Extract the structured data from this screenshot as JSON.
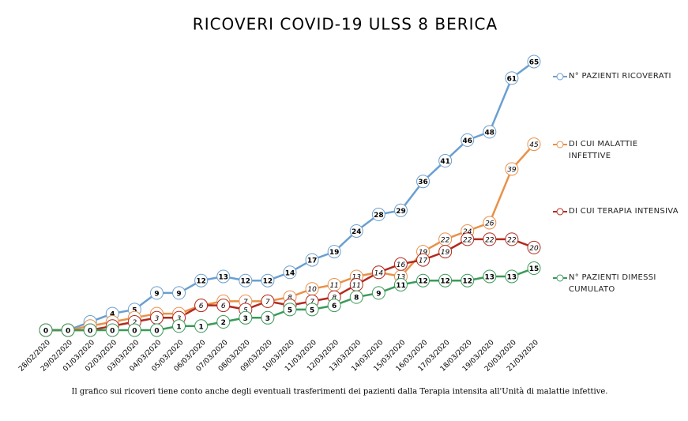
{
  "chart_data": {
    "type": "line",
    "title": "RICOVERI COVID-19 ULSS 8 BERICA",
    "footnote": "Il grafico sui ricoveri tiene conto anche degli eventuali trasferimenti dei pazienti dalla Terapia intensita all'Unità di malattie infettive.",
    "x": [
      "28/02/2020",
      "29/02/2020",
      "01/03/2020",
      "02/03/2020",
      "03/03/2020",
      "04/03/2020",
      "05/03/2020",
      "06/03/2020",
      "07/03/2020",
      "08/03/2020",
      "09/03/2020",
      "10/03/2020",
      "11/03/2020",
      "12/03/2020",
      "13/03/2020",
      "14/03/2020",
      "15/03/2020",
      "16/03/2020",
      "17/03/2020",
      "18/03/2020",
      "19/03/2020",
      "20/03/2020",
      "21/03/2020"
    ],
    "ylim": [
      0,
      65
    ],
    "series": [
      {
        "name": "N° PAZIENTI RICOVERATI",
        "color": "#6a9fd0",
        "values": [
          0,
          0,
          2,
          4,
          5,
          9,
          9,
          12,
          13,
          12,
          12,
          14,
          17,
          19,
          24,
          28,
          29,
          36,
          41,
          46,
          48,
          61,
          65
        ]
      },
      {
        "name": "DI CUI MALATTIE INFETTIVE",
        "color": "#e8914a",
        "values": [
          0,
          0,
          1,
          2,
          3,
          4,
          4,
          6,
          7,
          7,
          7,
          8,
          10,
          11,
          13,
          14,
          13,
          19,
          22,
          24,
          26,
          39,
          45
        ]
      },
      {
        "name": "DI CUI TERAPIA INTENSIVA",
        "color": "#b22a1e",
        "values": [
          0,
          0,
          0,
          1,
          2,
          3,
          3,
          6,
          6,
          5,
          7,
          6,
          7,
          8,
          11,
          14,
          16,
          17,
          19,
          22,
          22,
          22,
          20
        ]
      },
      {
        "name": "N° PAZIENTI DIMESSI CUMULATO",
        "color": "#3a9a58",
        "values": [
          0,
          0,
          0,
          0,
          0,
          0,
          1,
          1,
          2,
          3,
          3,
          5,
          5,
          6,
          8,
          9,
          11,
          12,
          12,
          12,
          13,
          13,
          15
        ]
      }
    ]
  }
}
